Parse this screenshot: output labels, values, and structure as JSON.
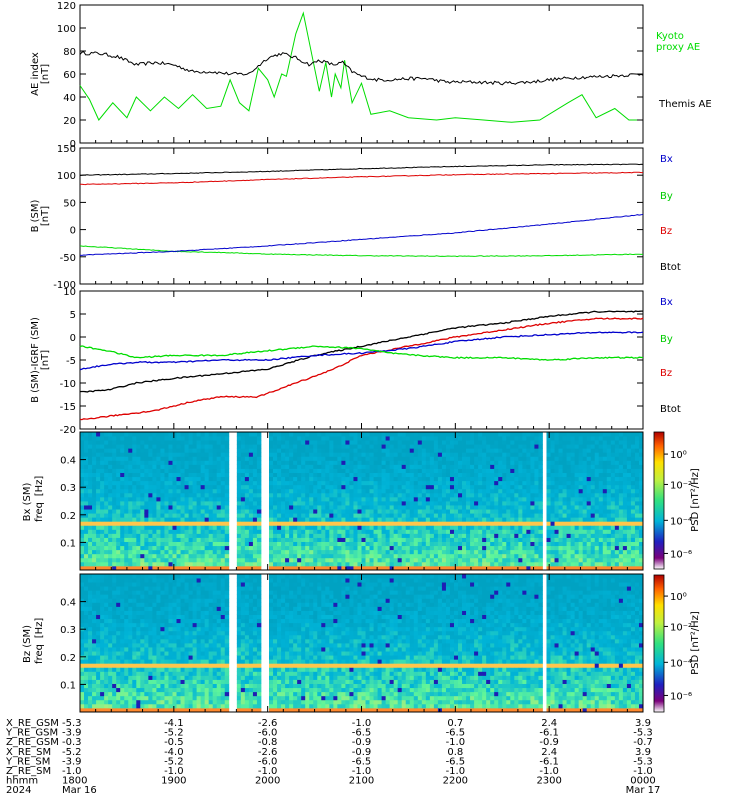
{
  "chart_data": [
    {
      "type": "line",
      "panel": "ae-index",
      "ylabel": "AE index",
      "yunit": "[nT]",
      "ylim": [
        0,
        120
      ],
      "yticks": [
        "0",
        "20",
        "40",
        "60",
        "80",
        "100",
        "120"
      ],
      "series": [
        {
          "name": "Kyoto proxy AE",
          "color": "#00dd00",
          "points": [
            [
              18.0,
              50
            ],
            [
              18.1,
              38
            ],
            [
              18.2,
              20
            ],
            [
              18.35,
              35
            ],
            [
              18.5,
              22
            ],
            [
              18.6,
              40
            ],
            [
              18.75,
              28
            ],
            [
              18.9,
              40
            ],
            [
              19.05,
              30
            ],
            [
              19.2,
              42
            ],
            [
              19.35,
              30
            ],
            [
              19.5,
              32
            ],
            [
              19.6,
              55
            ],
            [
              19.7,
              35
            ],
            [
              19.8,
              28
            ],
            [
              19.9,
              65
            ],
            [
              20.0,
              55
            ],
            [
              20.07,
              40
            ],
            [
              20.15,
              60
            ],
            [
              20.2,
              58
            ],
            [
              20.3,
              95
            ],
            [
              20.38,
              113
            ],
            [
              20.45,
              85
            ],
            [
              20.55,
              45
            ],
            [
              20.62,
              70
            ],
            [
              20.68,
              40
            ],
            [
              20.72,
              60
            ],
            [
              20.78,
              48
            ],
            [
              20.82,
              72
            ],
            [
              20.9,
              35
            ],
            [
              21.0,
              52
            ],
            [
              21.1,
              25
            ],
            [
              21.3,
              28
            ],
            [
              21.5,
              22
            ],
            [
              21.8,
              20
            ],
            [
              22.0,
              22
            ],
            [
              22.3,
              20
            ],
            [
              22.6,
              18
            ],
            [
              22.9,
              20
            ],
            [
              23.2,
              35
            ],
            [
              23.35,
              42
            ],
            [
              23.5,
              22
            ],
            [
              23.7,
              30
            ],
            [
              23.85,
              20
            ],
            [
              24.0,
              20
            ]
          ]
        },
        {
          "name": "Themis AE",
          "color": "#000000",
          "points": [
            [
              18.0,
              78
            ],
            [
              18.2,
              78
            ],
            [
              18.4,
              75
            ],
            [
              18.6,
              68
            ],
            [
              18.8,
              70
            ],
            [
              19.0,
              68
            ],
            [
              19.2,
              62
            ],
            [
              19.4,
              62
            ],
            [
              19.6,
              60
            ],
            [
              19.8,
              60
            ],
            [
              20.0,
              74
            ],
            [
              20.15,
              78
            ],
            [
              20.3,
              74
            ],
            [
              20.45,
              68
            ],
            [
              20.55,
              72
            ],
            [
              20.7,
              68
            ],
            [
              20.8,
              70
            ],
            [
              20.9,
              62
            ],
            [
              21.0,
              58
            ],
            [
              21.15,
              55
            ],
            [
              21.3,
              55
            ],
            [
              21.5,
              56
            ],
            [
              21.7,
              56
            ],
            [
              21.9,
              53
            ],
            [
              22.2,
              53
            ],
            [
              22.5,
              52
            ],
            [
              22.8,
              53
            ],
            [
              23.0,
              55
            ],
            [
              23.3,
              57
            ],
            [
              23.6,
              58
            ],
            [
              23.8,
              59
            ],
            [
              24.0,
              60
            ]
          ]
        }
      ],
      "legend": [
        "Kyoto",
        "proxy AE",
        "Themis AE"
      ]
    },
    {
      "type": "line",
      "panel": "b-sm",
      "ylabel": "B (SM)",
      "yunit": "[nT]",
      "ylim": [
        -100,
        150
      ],
      "yticks": [
        "-100",
        "-50",
        "0",
        "50",
        "100",
        "150"
      ],
      "series": [
        {
          "name": "Bx",
          "color": "#000000",
          "points": [
            [
              18,
              100
            ],
            [
              19,
              103
            ],
            [
              20,
              107
            ],
            [
              21,
              112
            ],
            [
              22,
              116
            ],
            [
              23,
              119
            ],
            [
              24,
              120
            ]
          ]
        },
        {
          "name": "By",
          "color": "#00dd00",
          "points": [
            [
              18,
              -30
            ],
            [
              18.5,
              -35
            ],
            [
              19,
              -40
            ],
            [
              19.5,
              -42
            ],
            [
              20,
              -45
            ],
            [
              21,
              -48
            ],
            [
              22,
              -49
            ],
            [
              23,
              -48
            ],
            [
              24,
              -45
            ]
          ]
        },
        {
          "name": "Bz",
          "color": "#dd0000",
          "points": [
            [
              18,
              83
            ],
            [
              19,
              86
            ],
            [
              20,
              92
            ],
            [
              21,
              97
            ],
            [
              22,
              101
            ],
            [
              23,
              103
            ],
            [
              24,
              105
            ]
          ]
        },
        {
          "name": "Btot",
          "color": "#0000cc",
          "points": [
            [
              18,
              -47
            ],
            [
              19,
              -40
            ],
            [
              20,
              -30
            ],
            [
              21,
              -18
            ],
            [
              22,
              -6
            ],
            [
              23,
              10
            ],
            [
              24,
              28
            ]
          ]
        }
      ],
      "legend": [
        "Bx",
        "By",
        "Bz",
        "Btot"
      ]
    },
    {
      "type": "line",
      "panel": "b-minus-igrf",
      "ylabel": "B (SM)-IGRF (SM)",
      "yunit": "[nT]",
      "ylim": [
        -20,
        10
      ],
      "yticks": [
        "-20",
        "-15",
        "-10",
        "-5",
        "0",
        "5",
        "10"
      ],
      "series": [
        {
          "name": "Btot",
          "color": "#000000",
          "points": [
            [
              18,
              -12
            ],
            [
              18.3,
              -11.5
            ],
            [
              18.6,
              -10
            ],
            [
              19,
              -9
            ],
            [
              19.5,
              -8
            ],
            [
              20,
              -7
            ],
            [
              20.5,
              -4
            ],
            [
              21,
              -2
            ],
            [
              21.5,
              0
            ],
            [
              22,
              2
            ],
            [
              22.5,
              3
            ],
            [
              23,
              4.5
            ],
            [
              23.5,
              5.5
            ],
            [
              24,
              5.5
            ]
          ]
        },
        {
          "name": "Bz",
          "color": "#dd0000",
          "points": [
            [
              18,
              -18
            ],
            [
              18.4,
              -17
            ],
            [
              18.8,
              -16
            ],
            [
              19.2,
              -14
            ],
            [
              19.5,
              -13
            ],
            [
              19.9,
              -13
            ],
            [
              20.3,
              -10
            ],
            [
              20.7,
              -7
            ],
            [
              21,
              -4
            ],
            [
              21.5,
              -2
            ],
            [
              22,
              0
            ],
            [
              22.5,
              1.5
            ],
            [
              23,
              3
            ],
            [
              23.5,
              4
            ],
            [
              24,
              4
            ]
          ]
        },
        {
          "name": "Bx",
          "color": "#0000cc",
          "points": [
            [
              18,
              -7
            ],
            [
              18.3,
              -6
            ],
            [
              18.6,
              -5.5
            ],
            [
              19,
              -5.5
            ],
            [
              19.5,
              -5
            ],
            [
              20,
              -5
            ],
            [
              20.5,
              -4
            ],
            [
              21,
              -3.5
            ],
            [
              21.5,
              -2.5
            ],
            [
              22,
              -1
            ],
            [
              22.5,
              0
            ],
            [
              23,
              0.5
            ],
            [
              23.5,
              1
            ],
            [
              24,
              1
            ]
          ]
        },
        {
          "name": "By",
          "color": "#00dd00",
          "points": [
            [
              18,
              -2
            ],
            [
              18.3,
              -3
            ],
            [
              18.6,
              -4.5
            ],
            [
              19,
              -4
            ],
            [
              19.5,
              -4
            ],
            [
              20,
              -3
            ],
            [
              20.5,
              -2
            ],
            [
              21,
              -2.5
            ],
            [
              21.3,
              -3.5
            ],
            [
              21.6,
              -4
            ],
            [
              22,
              -4.5
            ],
            [
              22.5,
              -4.5
            ],
            [
              23,
              -5
            ],
            [
              23.5,
              -4.5
            ],
            [
              24,
              -4.5
            ]
          ]
        }
      ],
      "legend": [
        "Bx",
        "By",
        "Bz",
        "Btot"
      ]
    },
    {
      "type": "heatmap",
      "panel": "bx-spectrogram",
      "ylabel": "Bx (SM)",
      "ylabel2": "freq",
      "yunit": "[Hz]",
      "ylim": [
        0,
        0.5
      ],
      "yticks": [
        "0.1",
        "0.2",
        "0.3",
        "0.4"
      ],
      "colorbar_label": "PSD [nT²/Hz]",
      "colorbar_ticks": [
        "10⁰",
        "10⁻²",
        "10⁻⁴",
        "10⁻⁶"
      ],
      "data_gaps_hours": [
        [
          19.57,
          19.67
        ],
        [
          19.93,
          20.03
        ],
        [
          22.93,
          22.98
        ]
      ],
      "colors": {
        "low": "#00b4d8",
        "mid": "#5ff59a",
        "high": "#ffe45a",
        "peak": "#ff6a20"
      }
    },
    {
      "type": "heatmap",
      "panel": "bz-spectrogram",
      "ylabel": "Bz (SM)",
      "ylabel2": "freq",
      "yunit": "[Hz]",
      "ylim": [
        0,
        0.5
      ],
      "yticks": [
        "0.1",
        "0.2",
        "0.3",
        "0.4"
      ],
      "colorbar_label": "PSD [nT²/Hz]",
      "colorbar_ticks": [
        "10⁰",
        "10⁻²",
        "10⁻⁴",
        "10⁻⁶"
      ],
      "data_gaps_hours": [
        [
          19.57,
          19.67
        ],
        [
          19.93,
          20.03
        ],
        [
          22.93,
          22.98
        ]
      ],
      "colors": {
        "low": "#00b4d8",
        "mid": "#5ff59a",
        "high": "#ffe45a",
        "peak": "#ff6a20"
      }
    }
  ],
  "x_axis": {
    "start_hour": 18,
    "end_hour": 24,
    "rows": [
      {
        "label": "X_RE_GSM",
        "values": [
          "-5.3",
          "-4.1",
          "-2.6",
          "-1.0",
          "0.7",
          "2.4",
          "3.9"
        ]
      },
      {
        "label": "Y_RE_GSM",
        "values": [
          "-3.9",
          "-5.2",
          "-6.0",
          "-6.5",
          "-6.5",
          "-6.1",
          "-5.3"
        ]
      },
      {
        "label": "Z_RE_GSM",
        "values": [
          "-0.3",
          "-0.5",
          "-0.8",
          "-0.9",
          "-1.0",
          "-0.9",
          "-0.7"
        ]
      },
      {
        "label": "X_RE_SM",
        "values": [
          "-5.2",
          "-4.0",
          "-2.6",
          "-0.9",
          "0.8",
          "2.4",
          "3.9"
        ]
      },
      {
        "label": "Y_RE_SM",
        "values": [
          "-3.9",
          "-5.2",
          "-6.0",
          "-6.5",
          "-6.5",
          "-6.1",
          "-5.3"
        ]
      },
      {
        "label": "Z_RE_SM",
        "values": [
          "-1.0",
          "-1.0",
          "-1.0",
          "-1.0",
          "-1.0",
          "-1.0",
          "-1.0"
        ]
      },
      {
        "label": "hhmm",
        "values": [
          "1800",
          "1900",
          "2000",
          "2100",
          "2200",
          "2300",
          "0000"
        ]
      },
      {
        "label": "2024",
        "values": [
          "Mar 16",
          "",
          "",
          "",
          "",
          "",
          "Mar 17"
        ]
      }
    ]
  }
}
